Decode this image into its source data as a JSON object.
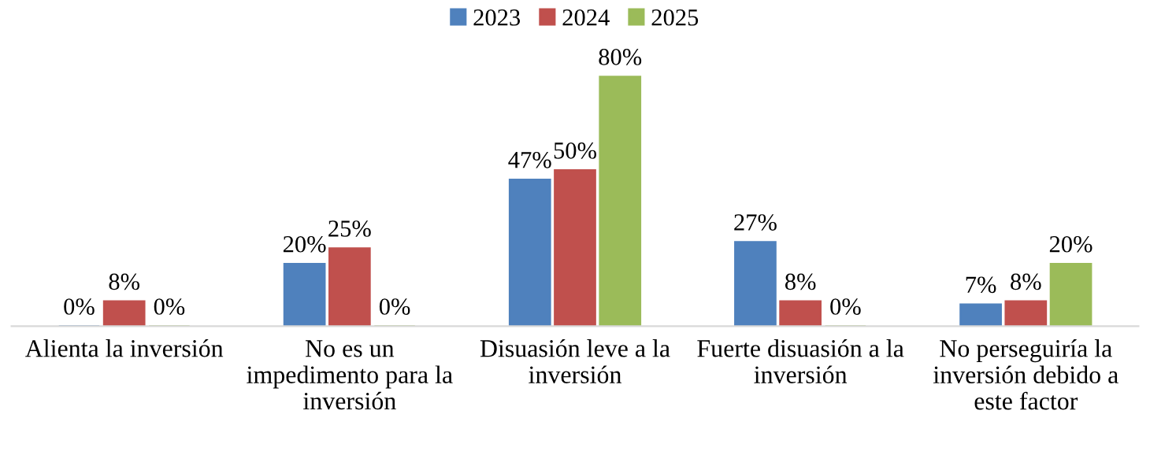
{
  "chart_data": {
    "type": "bar",
    "categories": [
      "Alienta la inversión",
      "No es un\nimpedimento para la\ninversión",
      "Disuasión leve a la\ninversión",
      "Fuerte disuasión a la\ninversión",
      "No perseguiría la\ninversión debido a\neste factor"
    ],
    "series": [
      {
        "name": "2023",
        "color": "#4f81bd",
        "values": [
          0,
          20,
          47,
          27,
          7
        ],
        "value_labels": [
          "0%",
          "20%",
          "47%",
          "27%",
          "7%"
        ]
      },
      {
        "name": "2024",
        "color": "#c0504d",
        "values": [
          8,
          25,
          50,
          8,
          8
        ],
        "value_labels": [
          "8%",
          "25%",
          "50%",
          "8%",
          "8%"
        ]
      },
      {
        "name": "2025",
        "color": "#9bbb59",
        "values": [
          0,
          0,
          80,
          0,
          20
        ],
        "value_labels": [
          "0%",
          "0%",
          "80%",
          "0%",
          "20%"
        ]
      }
    ],
    "legend": "top",
    "grid": false
  }
}
